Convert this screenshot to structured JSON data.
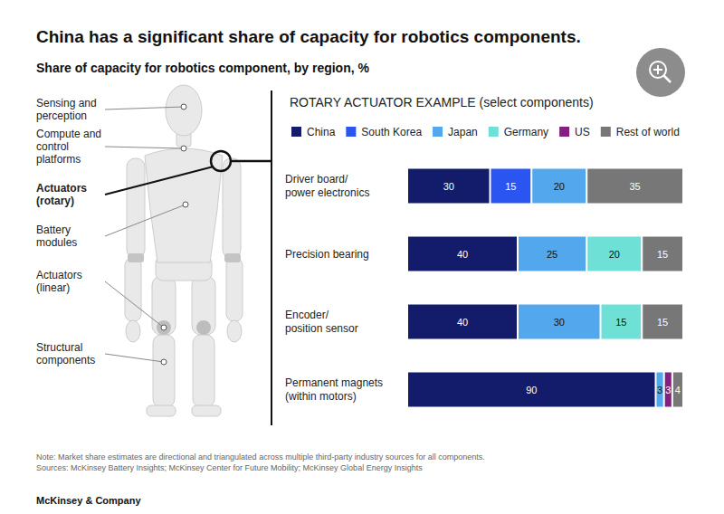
{
  "title": "China has a significant share of capacity for robotics components.",
  "subtitle": "Share of capacity for robotics component, by region, %",
  "diagram": {
    "parts": [
      "Sensing and perception",
      "Compute and control platforms",
      "Actuators (rotary)",
      "Battery modules",
      "Actuators (linear)",
      "Structural components"
    ],
    "selected": "Actuators (rotary)"
  },
  "chart_data": {
    "type": "bar",
    "title": "ROTARY ACTUATOR EXAMPLE (select components)",
    "orientation": "horizontal",
    "stacked": true,
    "data_labels": true,
    "tick_labels": "y",
    "grid": false,
    "legend": "top",
    "xlim": [
      0,
      100
    ],
    "categories": [
      "Driver board/power electronics",
      "Precision bearing",
      "Encoder/position sensor",
      "Permanent magnets (within motors)"
    ],
    "series": [
      {
        "name": "China",
        "color": "#121c6b",
        "values": [
          30,
          40,
          40,
          90
        ]
      },
      {
        "name": "South Korea",
        "color": "#2a55f0",
        "values": [
          15,
          null,
          null,
          null
        ]
      },
      {
        "name": "Japan",
        "color": "#53a7ec",
        "values": [
          20,
          25,
          30,
          3
        ]
      },
      {
        "name": "Germany",
        "color": "#6fe0d6",
        "values": [
          null,
          20,
          15,
          null
        ]
      },
      {
        "name": "US",
        "color": "#84207f",
        "values": [
          null,
          null,
          null,
          3
        ]
      },
      {
        "name": "Rest of world",
        "color": "#777777",
        "values": [
          35,
          15,
          15,
          4
        ]
      }
    ]
  },
  "note": "Note: Market share estimates are directional and triangulated across multiple third-party industry sources for all components.",
  "sources": "Sources: McKinsey Battery Insights; McKinsey Center for Future Mobility; McKinsey Global Energy Insights",
  "footer": "McKinsey & Company"
}
